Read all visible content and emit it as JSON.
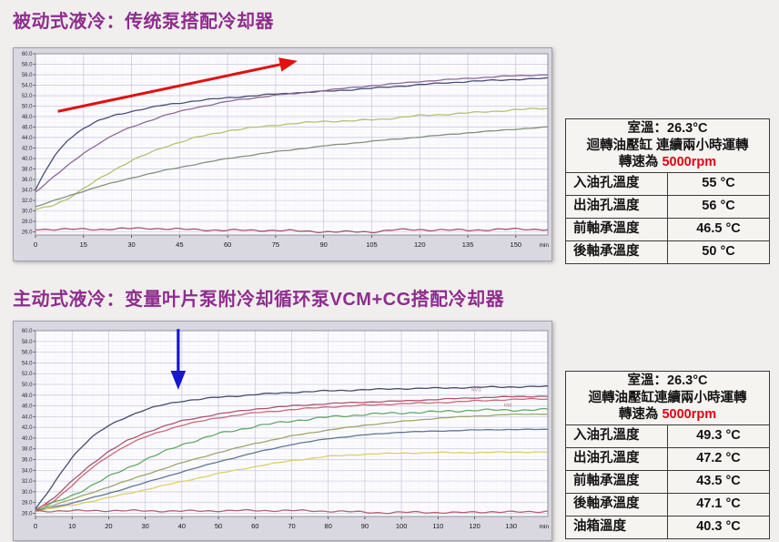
{
  "page": {
    "background": "#f1efed",
    "accent_title_color": "#8e2d8e",
    "alert_red": "#e60012"
  },
  "sections": [
    {
      "title": "被动式液冷：传统泵搭配冷却器"
    },
    {
      "title": "主动式液冷：变量叶片泵附冷却循环泵VCM+CG搭配冷却器"
    }
  ],
  "tables": [
    {
      "header": {
        "line1": "室溫：26.3°C",
        "line2": "迴轉油壓缸 連續兩小時運轉",
        "speed_prefix": "轉速為 ",
        "speed_value": "5000rpm",
        "speed_color": "#e60012"
      },
      "rows": [
        {
          "label": "入油孔溫度",
          "value": "55 °C"
        },
        {
          "label": "出油孔溫度",
          "value": "56 °C"
        },
        {
          "label": "前軸承溫度",
          "value": "46.5 °C"
        },
        {
          "label": "後軸承溫度",
          "value": "50 °C"
        }
      ]
    },
    {
      "header": {
        "line1": "室溫：26.3°C",
        "line2": "迴轉油壓缸連續兩小時運轉",
        "speed_prefix": "轉速為 ",
        "speed_value": "5000rpm",
        "speed_color": "#e60012"
      },
      "rows": [
        {
          "label": "入油孔溫度",
          "value": "49.3 °C"
        },
        {
          "label": "出油孔溫度",
          "value": "47.2 °C"
        },
        {
          "label": "前軸承溫度",
          "value": "43.5 °C"
        },
        {
          "label": "後軸承溫度",
          "value": "47.1 °C"
        },
        {
          "label": "油箱溫度",
          "value": "40.3 °C"
        }
      ]
    }
  ],
  "chart_data": [
    {
      "type": "line",
      "title": "",
      "xlabel": "min",
      "ylabel": "",
      "xlim": [
        0,
        160
      ],
      "ylim": [
        26,
        60
      ],
      "y_tick_step": 2,
      "x_ticks": [
        0,
        15,
        30,
        45,
        60,
        75,
        90,
        105,
        120,
        135,
        150
      ],
      "x_unit": "min",
      "grid": true,
      "legend": "none",
      "series": [
        {
          "name": "navy",
          "color": "#3f4472",
          "jitter": 0.12,
          "points": [
            [
              0,
              34
            ],
            [
              3,
              37.5
            ],
            [
              6,
              40.5
            ],
            [
              10,
              43.5
            ],
            [
              15,
              45.8
            ],
            [
              20,
              47.3
            ],
            [
              25,
              48.3
            ],
            [
              30,
              49
            ],
            [
              40,
              50.2
            ],
            [
              50,
              51
            ],
            [
              60,
              51.6
            ],
            [
              75,
              52.3
            ],
            [
              90,
              52.8
            ],
            [
              105,
              53.4
            ],
            [
              120,
              54.1
            ],
            [
              135,
              54.7
            ],
            [
              150,
              55.1
            ],
            [
              160,
              55.3
            ]
          ]
        },
        {
          "name": "purple",
          "color": "#8a5f8f",
          "jitter": 0.1,
          "points": [
            [
              0,
              33.6
            ],
            [
              5,
              36.2
            ],
            [
              10,
              38.6
            ],
            [
              15,
              41
            ],
            [
              20,
              43
            ],
            [
              25,
              44.7
            ],
            [
              30,
              46
            ],
            [
              40,
              48.2
            ],
            [
              50,
              49.7
            ],
            [
              60,
              50.9
            ],
            [
              75,
              52.1
            ],
            [
              90,
              53
            ],
            [
              105,
              53.9
            ],
            [
              120,
              54.7
            ],
            [
              135,
              55.3
            ],
            [
              150,
              55.8
            ],
            [
              160,
              56
            ]
          ]
        },
        {
          "name": "yellow-green",
          "color": "#b0bf68",
          "jitter": 0.15,
          "points": [
            [
              0,
              30.2
            ],
            [
              5,
              31
            ],
            [
              10,
              32.3
            ],
            [
              15,
              34.2
            ],
            [
              20,
              36.2
            ],
            [
              25,
              38
            ],
            [
              30,
              39.6
            ],
            [
              40,
              42.2
            ],
            [
              50,
              44
            ],
            [
              60,
              45.3
            ],
            [
              75,
              46.4
            ],
            [
              90,
              47.1
            ],
            [
              100,
              47.2
            ],
            [
              110,
              47.6
            ],
            [
              120,
              48.2
            ],
            [
              130,
              48.5
            ],
            [
              140,
              48.9
            ],
            [
              150,
              49.3
            ],
            [
              160,
              49.6
            ]
          ]
        },
        {
          "name": "olive-gray",
          "color": "#808a74",
          "jitter": 0.07,
          "points": [
            [
              0,
              30.8
            ],
            [
              10,
              32.8
            ],
            [
              20,
              34.7
            ],
            [
              30,
              36.3
            ],
            [
              40,
              37.7
            ],
            [
              50,
              38.9
            ],
            [
              60,
              40
            ],
            [
              75,
              41.3
            ],
            [
              90,
              42.4
            ],
            [
              105,
              43.3
            ],
            [
              120,
              44.1
            ],
            [
              135,
              44.9
            ],
            [
              150,
              45.6
            ],
            [
              160,
              46
            ]
          ]
        },
        {
          "name": "room-temp-flat",
          "color": "#a24e5e",
          "jitter": 0.2,
          "points": [
            [
              0,
              26.5
            ],
            [
              20,
              26.5
            ],
            [
              35,
              26.7
            ],
            [
              45,
              26.5
            ],
            [
              60,
              26.3
            ],
            [
              75,
              26.3
            ],
            [
              85,
              26.1
            ],
            [
              95,
              26
            ],
            [
              105,
              26
            ],
            [
              112,
              26.4
            ],
            [
              125,
              26.4
            ],
            [
              135,
              26.3
            ],
            [
              145,
              26.5
            ],
            [
              160,
              26.5
            ]
          ]
        }
      ],
      "arrow": {
        "shape": "arrow",
        "color": "#e31010",
        "stroke_width": 3,
        "from": [
          7,
          49
        ],
        "to": [
          80,
          58.4
        ]
      },
      "annotations": []
    },
    {
      "type": "line",
      "title": "",
      "xlabel": "min",
      "ylabel": "",
      "xlim": [
        0,
        140
      ],
      "ylim": [
        26,
        60
      ],
      "y_tick_step": 2,
      "x_ticks": [
        0,
        10,
        20,
        30,
        40,
        50,
        60,
        70,
        80,
        90,
        100,
        110,
        120,
        130
      ],
      "x_unit": "min",
      "grid": true,
      "legend": "none",
      "series": [
        {
          "name": "navy",
          "color": "#3c4066",
          "jitter": 0.13,
          "points": [
            [
              0,
              26.8
            ],
            [
              3,
              29.5
            ],
            [
              6,
              32.5
            ],
            [
              10,
              36.5
            ],
            [
              15,
              40
            ],
            [
              20,
              42.3
            ],
            [
              25,
              44
            ],
            [
              30,
              45.3
            ],
            [
              35,
              46.2
            ],
            [
              40,
              46.9
            ],
            [
              50,
              47.6
            ],
            [
              60,
              48.1
            ],
            [
              70,
              48.5
            ],
            [
              80,
              48.8
            ],
            [
              90,
              49
            ],
            [
              100,
              49.2
            ],
            [
              110,
              49.3
            ],
            [
              125,
              49.5
            ],
            [
              140,
              49.6
            ]
          ]
        },
        {
          "name": "crimson",
          "color": "#a84e66",
          "jitter": 0.1,
          "points": [
            [
              0,
              26.7
            ],
            [
              5,
              28.8
            ],
            [
              10,
              32
            ],
            [
              15,
              35
            ],
            [
              20,
              37.5
            ],
            [
              25,
              39.5
            ],
            [
              30,
              41
            ],
            [
              35,
              42.2
            ],
            [
              40,
              43.2
            ],
            [
              50,
              44.5
            ],
            [
              60,
              45.4
            ],
            [
              70,
              46
            ],
            [
              80,
              46.4
            ],
            [
              90,
              46.7
            ],
            [
              100,
              46.9
            ],
            [
              110,
              47.2
            ],
            [
              120,
              47.5
            ],
            [
              130,
              47.7
            ],
            [
              140,
              47.8
            ]
          ]
        },
        {
          "name": "red",
          "color": "#c9606e",
          "jitter": 0.12,
          "points": [
            [
              0,
              26.6
            ],
            [
              5,
              28.3
            ],
            [
              10,
              31.2
            ],
            [
              15,
              34.2
            ],
            [
              20,
              36.7
            ],
            [
              25,
              38.7
            ],
            [
              30,
              40.2
            ],
            [
              35,
              41.4
            ],
            [
              40,
              42.4
            ],
            [
              50,
              43.8
            ],
            [
              60,
              44.7
            ],
            [
              70,
              45.3
            ],
            [
              80,
              45.8
            ],
            [
              90,
              46.1
            ],
            [
              100,
              46.4
            ],
            [
              110,
              46.6
            ],
            [
              120,
              46.9
            ],
            [
              130,
              47.2
            ],
            [
              140,
              47.3
            ]
          ]
        },
        {
          "name": "green",
          "color": "#5aa55e",
          "jitter": 0.22,
          "points": [
            [
              0,
              26.5
            ],
            [
              10,
              29.3
            ],
            [
              20,
              32.8
            ],
            [
              30,
              36
            ],
            [
              40,
              38.8
            ],
            [
              50,
              40.8
            ],
            [
              60,
              42.2
            ],
            [
              70,
              43.2
            ],
            [
              80,
              43.9
            ],
            [
              90,
              44.4
            ],
            [
              100,
              44.7
            ],
            [
              110,
              44.9
            ],
            [
              120,
              45.2
            ],
            [
              130,
              45.2
            ],
            [
              140,
              45.3
            ]
          ]
        },
        {
          "name": "olive",
          "color": "#98a45f",
          "jitter": 0.07,
          "points": [
            [
              0,
              26.5
            ],
            [
              10,
              28.6
            ],
            [
              20,
              30.9
            ],
            [
              30,
              33.2
            ],
            [
              40,
              35.4
            ],
            [
              50,
              37.3
            ],
            [
              60,
              39
            ],
            [
              70,
              40.4
            ],
            [
              80,
              41.5
            ],
            [
              90,
              42.4
            ],
            [
              100,
              43.1
            ],
            [
              110,
              43.7
            ],
            [
              120,
              44.1
            ],
            [
              130,
              44.4
            ],
            [
              140,
              44.5
            ]
          ]
        },
        {
          "name": "steel-blue",
          "color": "#56718c",
          "jitter": 0.06,
          "points": [
            [
              0,
              26.4
            ],
            [
              10,
              27.9
            ],
            [
              20,
              29.7
            ],
            [
              30,
              31.7
            ],
            [
              40,
              33.7
            ],
            [
              50,
              35.6
            ],
            [
              60,
              37.3
            ],
            [
              70,
              38.8
            ],
            [
              80,
              39.9
            ],
            [
              90,
              40.6
            ],
            [
              100,
              41.1
            ],
            [
              110,
              41.3
            ],
            [
              120,
              41.5
            ],
            [
              130,
              41.6
            ],
            [
              140,
              41.6
            ]
          ]
        },
        {
          "name": "yellow",
          "color": "#d9cd60",
          "jitter": 0.1,
          "points": [
            [
              0,
              26.4
            ],
            [
              10,
              27.5
            ],
            [
              20,
              28.9
            ],
            [
              30,
              30.4
            ],
            [
              40,
              31.9
            ],
            [
              50,
              33.4
            ],
            [
              60,
              34.7
            ],
            [
              70,
              35.8
            ],
            [
              80,
              36.6
            ],
            [
              90,
              37
            ],
            [
              100,
              37.2
            ],
            [
              110,
              37.3
            ],
            [
              120,
              37.3
            ],
            [
              130,
              37.4
            ],
            [
              140,
              37.4
            ]
          ]
        },
        {
          "name": "room-temp-flat",
          "color": "#b05a68",
          "jitter": 0.18,
          "points": [
            [
              0,
              26.4
            ],
            [
              20,
              26.5
            ],
            [
              40,
              26.4
            ],
            [
              55,
              26.5
            ],
            [
              70,
              26.5
            ],
            [
              80,
              26.4
            ],
            [
              90,
              26.2
            ],
            [
              95,
              26.1
            ],
            [
              105,
              26.2
            ],
            [
              115,
              26.1
            ],
            [
              125,
              26.3
            ],
            [
              133,
              26.2
            ],
            [
              140,
              26.4
            ]
          ]
        }
      ],
      "arrow": {
        "shape": "arrow",
        "color": "#1717cf",
        "stroke_width": 3.2,
        "from": [
          39,
          60.3
        ],
        "to": [
          39,
          50.2
        ]
      },
      "annotations": [
        {
          "text": "NVS",
          "t": 119,
          "v": 48.7,
          "color": "#9a6a6a"
        },
        {
          "text": "HIb",
          "t": 128,
          "v": 45.8,
          "color": "#9a6a6a"
        }
      ]
    }
  ]
}
